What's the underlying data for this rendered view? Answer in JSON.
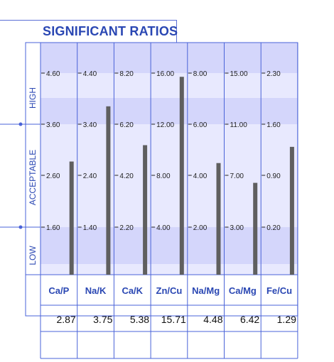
{
  "title": "SIGNIFICANT RATIOS",
  "zones": {
    "high": "HIGH",
    "acceptable": "ACCEPTABLE",
    "low": "LOW"
  },
  "colors": {
    "border": "#4a63d8",
    "title": "#2a47b3",
    "label": "#2a47b3",
    "band_dark": "#d4d6fb",
    "band_light": "#e8e9fe",
    "bar": "#5f5f5f",
    "tick_text": "#222222"
  },
  "chart_data": {
    "type": "bar",
    "title": "SIGNIFICANT RATIOS",
    "categories": [
      "Ca/P",
      "Na/K",
      "Ca/K",
      "Zn/Cu",
      "Na/Mg",
      "Ca/Mg",
      "Fe/Cu"
    ],
    "values": [
      2.87,
      3.75,
      5.38,
      15.71,
      4.48,
      6.42,
      1.29
    ],
    "value_labels": [
      "2.87",
      "3.75",
      "5.38",
      "15.71",
      "4.48",
      "6.42",
      "1.29"
    ],
    "ticks": [
      [
        "1.60",
        "2.60",
        "3.60",
        "4.60"
      ],
      [
        "1.40",
        "2.40",
        "3.40",
        "4.40"
      ],
      [
        "2.20",
        "4.20",
        "6.20",
        "8.20"
      ],
      [
        "4.00",
        "8.00",
        "12.00",
        "16.00"
      ],
      [
        "2.00",
        "4.00",
        "6.00",
        "8.00"
      ],
      [
        "3.00",
        "7.00",
        "11.00",
        "15.00"
      ],
      [
        "0.20",
        "0.90",
        "1.60",
        "2.30"
      ]
    ],
    "zone_labels": [
      "LOW",
      "ACCEPTABLE",
      "HIGH"
    ],
    "grid": true
  }
}
